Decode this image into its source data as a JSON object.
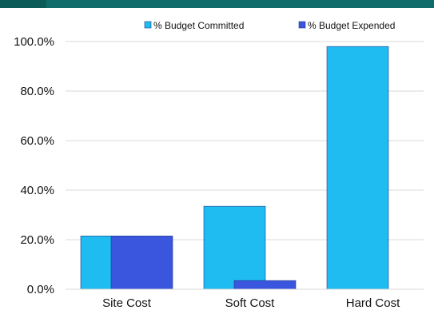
{
  "chart_data": {
    "type": "bar",
    "categories": [
      "Site Cost",
      "Soft Cost",
      "Hard Cost"
    ],
    "series": [
      {
        "name": "% Budget Committed",
        "values": [
          21.5,
          33.5,
          98.0
        ],
        "color": "#1ebcf0"
      },
      {
        "name": "% Budget Expended",
        "values": [
          21.5,
          3.5,
          0.0
        ],
        "color": "#3a55de"
      }
    ],
    "yticks": [
      "0.0%",
      "20.0%",
      "40.0%",
      "60.0%",
      "80.0%",
      "100.0%"
    ],
    "ylim": [
      0,
      100
    ],
    "grid": true,
    "legend_position": "top-right",
    "title": "",
    "xlabel": "",
    "ylabel": ""
  },
  "colors": {
    "header_band": "#0f6c6a",
    "grid": "#d9d9d9",
    "bar_outline": "#1f3b8a"
  }
}
